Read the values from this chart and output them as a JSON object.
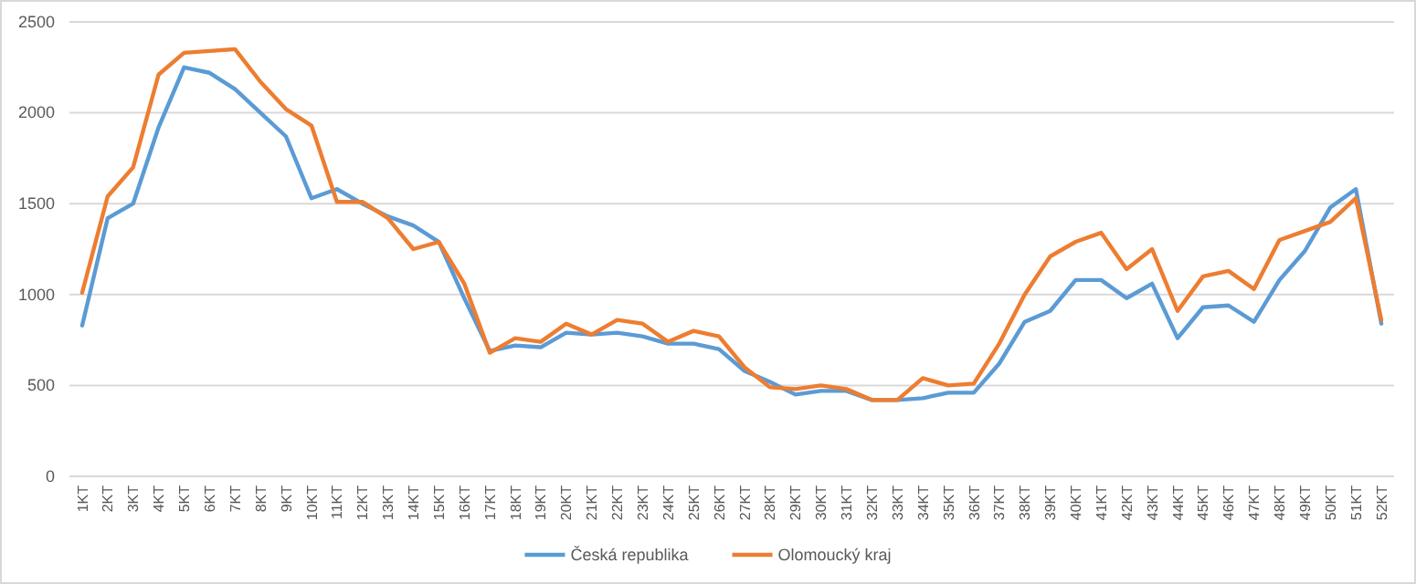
{
  "chart_data": {
    "type": "line",
    "categories": [
      "1KT",
      "2KT",
      "3KT",
      "4KT",
      "5KT",
      "6KT",
      "7KT",
      "8KT",
      "9KT",
      "10KT",
      "11KT",
      "12KT",
      "13KT",
      "14KT",
      "15KT",
      "16KT",
      "17KT",
      "18KT",
      "19KT",
      "20KT",
      "21KT",
      "22KT",
      "23KT",
      "24KT",
      "25KT",
      "26KT",
      "27KT",
      "28KT",
      "29KT",
      "30KT",
      "31KT",
      "32KT",
      "33KT",
      "34KT",
      "35KT",
      "36KT",
      "37KT",
      "38KT",
      "39KT",
      "40KT",
      "41KT",
      "42KT",
      "43KT",
      "44KT",
      "45KT",
      "46KT",
      "47KT",
      "48KT",
      "49KT",
      "50KT",
      "51KT",
      "52KT"
    ],
    "series": [
      {
        "name": "Česká republika",
        "color": "#5b9bd5",
        "values": [
          830,
          1420,
          1500,
          1920,
          2250,
          2220,
          2130,
          2000,
          1870,
          1530,
          1580,
          1500,
          1430,
          1380,
          1290,
          980,
          690,
          720,
          710,
          790,
          780,
          790,
          770,
          730,
          730,
          700,
          580,
          520,
          450,
          470,
          470,
          420,
          420,
          430,
          460,
          460,
          620,
          850,
          910,
          1080,
          1080,
          980,
          1060,
          760,
          930,
          940,
          850,
          1080,
          1240,
          1480,
          1580,
          840
        ]
      },
      {
        "name": "Olomoucký kraj",
        "color": "#ed7d31",
        "values": [
          1010,
          1540,
          1700,
          2210,
          2330,
          2340,
          2350,
          2170,
          2020,
          1930,
          1510,
          1510,
          1420,
          1250,
          1290,
          1060,
          680,
          760,
          740,
          840,
          780,
          860,
          840,
          740,
          800,
          770,
          600,
          490,
          480,
          500,
          480,
          420,
          420,
          540,
          500,
          510,
          730,
          1000,
          1210,
          1290,
          1340,
          1140,
          1250,
          910,
          1100,
          1130,
          1030,
          1300,
          1350,
          1400,
          1530,
          860
        ]
      }
    ],
    "ylim": [
      0,
      2500
    ],
    "yticks": [
      0,
      500,
      1000,
      1500,
      2000,
      2500
    ],
    "grid": "y",
    "legend": "bottom",
    "line_style": "solid",
    "marker": "none"
  }
}
